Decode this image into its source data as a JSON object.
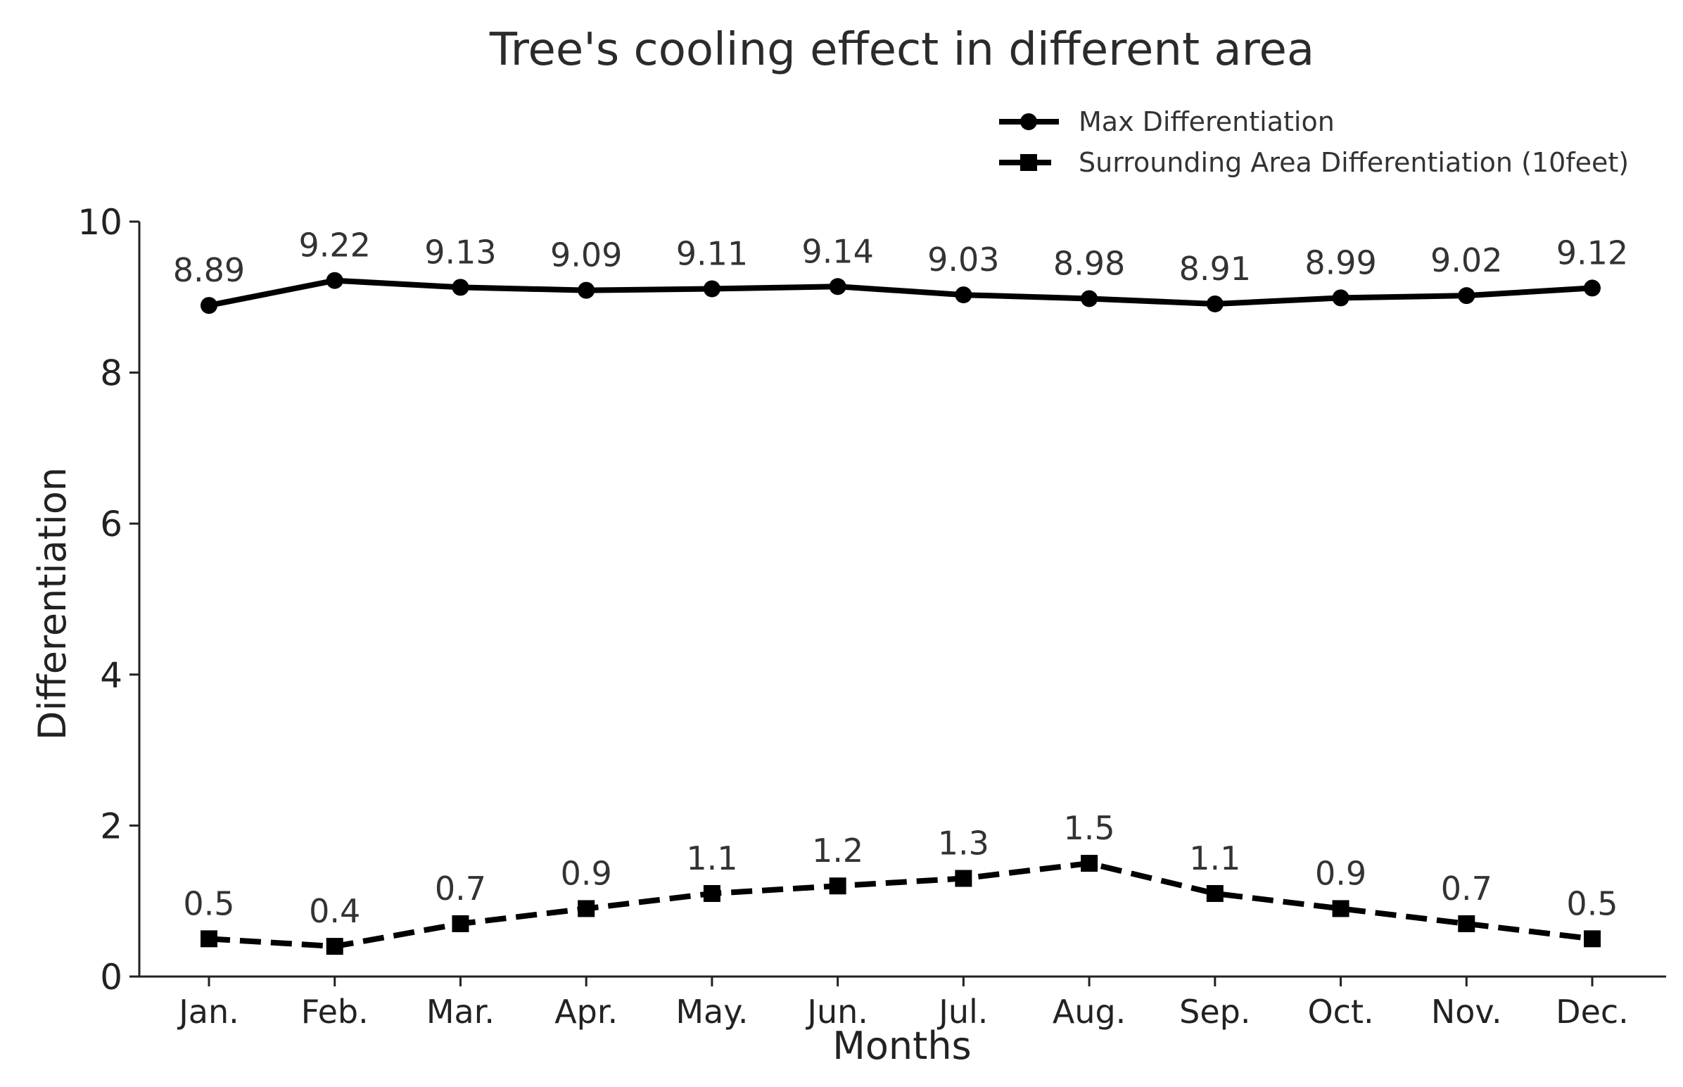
{
  "chart_data": {
    "type": "line",
    "title": "Tree's cooling effect in different area",
    "xlabel": "Months",
    "ylabel": "Differentiation",
    "categories": [
      "Jan.",
      "Feb.",
      "Mar.",
      "Apr.",
      "May.",
      "Jun.",
      "Jul.",
      "Aug.",
      "Sep.",
      "Oct.",
      "Nov.",
      "Dec."
    ],
    "ylim": [
      0,
      10
    ],
    "yticks": [
      "0",
      "2",
      "4",
      "6",
      "8",
      "10"
    ],
    "grid": false,
    "legend_position": "top-right",
    "series": [
      {
        "name": "Max Differentiation",
        "marker": "circle",
        "line_style": "solid",
        "color": "#000000",
        "values": [
          8.89,
          9.22,
          9.13,
          9.09,
          9.11,
          9.14,
          9.03,
          8.98,
          8.91,
          8.99,
          9.02,
          9.12
        ],
        "labels": [
          "8.89",
          "9.22",
          "9.13",
          "9.09",
          "9.11",
          "9.14",
          "9.03",
          "8.98",
          "8.91",
          "8.99",
          "9.02",
          "9.12"
        ]
      },
      {
        "name": "Surrounding Area Differentiation (10feet)",
        "marker": "square",
        "line_style": "dashed",
        "color": "#000000",
        "values": [
          0.5,
          0.4,
          0.7,
          0.9,
          1.1,
          1.2,
          1.3,
          1.5,
          1.1,
          0.9,
          0.7,
          0.5
        ],
        "labels": [
          "0.5",
          "0.4",
          "0.7",
          "0.9",
          "1.1",
          "1.2",
          "1.3",
          "1.5",
          "1.1",
          "0.9",
          "0.7",
          "0.5"
        ]
      }
    ]
  }
}
